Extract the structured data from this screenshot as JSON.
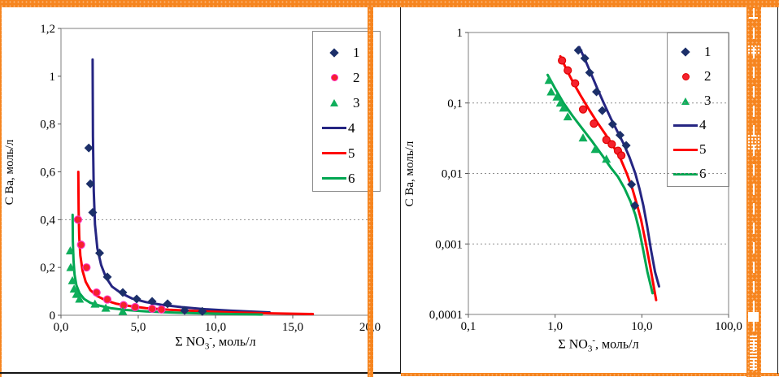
{
  "decor": {
    "accent_orange": "#f6851f",
    "frame_black": "#1d1d1d",
    "plot_border_gray": "#7f7f7f",
    "gridline_gray": "#8f8f8f"
  },
  "chart_data": [
    {
      "type": "scatter",
      "title": "",
      "x_scale": "linear",
      "y_scale": "linear",
      "xlim": [
        0,
        20
      ],
      "ylim": [
        0,
        1.2
      ],
      "grid": "single dashed line at y=0.4",
      "legend_position": "top-right-inside",
      "xlabel": {
        "prefix": "Σ NO",
        "sub": "3",
        "sup": "-",
        "suffix": ", моль/л"
      },
      "ylabel": "С Ba, моль/л",
      "x_ticks": [
        {
          "v": 0,
          "label": "0,0"
        },
        {
          "v": 5,
          "label": "5,0"
        },
        {
          "v": 10,
          "label": "10,0"
        },
        {
          "v": 15,
          "label": "15,0"
        },
        {
          "v": 20,
          "label": "20,0"
        }
      ],
      "y_ticks": [
        {
          "v": 1.2,
          "label": "1,2"
        },
        {
          "v": 1,
          "label": "1"
        },
        {
          "v": 0.8,
          "label": "0,8"
        },
        {
          "v": 0.6,
          "label": "0,6"
        },
        {
          "v": 0.4,
          "label": "0,4"
        },
        {
          "v": 0.2,
          "label": "0,2"
        },
        {
          "v": 0,
          "label": "0"
        }
      ],
      "gridlines_y": [
        0.4
      ],
      "series": [
        {
          "name": "4",
          "kind": "line",
          "color": "#252582",
          "points": [
            [
              2.05,
              1.07
            ],
            [
              2.07,
              0.75
            ],
            [
              2.12,
              0.52
            ],
            [
              2.2,
              0.38
            ],
            [
              2.35,
              0.28
            ],
            [
              2.6,
              0.21
            ],
            [
              2.9,
              0.16
            ],
            [
              3.3,
              0.12
            ],
            [
              3.9,
              0.092
            ],
            [
              4.6,
              0.07
            ],
            [
              5.5,
              0.055
            ],
            [
              6.5,
              0.044
            ],
            [
              7.8,
              0.034
            ],
            [
              9.2,
              0.026
            ],
            [
              11,
              0.019
            ],
            [
              13.5,
              0.012
            ]
          ]
        },
        {
          "name": "5",
          "kind": "line",
          "color": "#fe0000",
          "points": [
            [
              1.12,
              0.6
            ],
            [
              1.14,
              0.44
            ],
            [
              1.18,
              0.33
            ],
            [
              1.25,
              0.25
            ],
            [
              1.4,
              0.185
            ],
            [
              1.6,
              0.14
            ],
            [
              1.9,
              0.105
            ],
            [
              2.3,
              0.082
            ],
            [
              2.9,
              0.062
            ],
            [
              3.6,
              0.048
            ],
            [
              4.5,
              0.038
            ],
            [
              5.5,
              0.03
            ],
            [
              7,
              0.023
            ],
            [
              9,
              0.017
            ],
            [
              11,
              0.012
            ],
            [
              13.5,
              0.008
            ],
            [
              16.3,
              0.005
            ]
          ]
        },
        {
          "name": "6",
          "kind": "line",
          "color": "#00a651",
          "points": [
            [
              0.75,
              0.42
            ],
            [
              0.77,
              0.31
            ],
            [
              0.81,
              0.23
            ],
            [
              0.88,
              0.17
            ],
            [
              1.0,
              0.125
            ],
            [
              1.2,
              0.092
            ],
            [
              1.5,
              0.068
            ],
            [
              1.9,
              0.052
            ],
            [
              2.5,
              0.04
            ],
            [
              3.2,
              0.03
            ],
            [
              4.2,
              0.022
            ],
            [
              5.5,
              0.016
            ],
            [
              7,
              0.012
            ],
            [
              9,
              0.008
            ],
            [
              11,
              0.005
            ],
            [
              13,
              0.003
            ]
          ]
        },
        {
          "name": "1",
          "kind": "markers",
          "marker": "diamond",
          "color": "#1c2f69",
          "points": [
            [
              1.8,
              0.7
            ],
            [
              1.9,
              0.55
            ],
            [
              2.05,
              0.43
            ],
            [
              2.5,
              0.26
            ],
            [
              3.0,
              0.16
            ],
            [
              4.0,
              0.095
            ],
            [
              4.9,
              0.068
            ],
            [
              5.9,
              0.058
            ],
            [
              6.9,
              0.048
            ],
            [
              8.0,
              0.02
            ],
            [
              9.15,
              0.016
            ]
          ]
        },
        {
          "name": "2",
          "kind": "markers",
          "marker": "circle",
          "color": "#f5222d",
          "edge": "#ff2fbf",
          "points": [
            [
              1.1,
              0.4
            ],
            [
              1.3,
              0.295
            ],
            [
              1.65,
              0.2
            ],
            [
              2.3,
              0.095
            ],
            [
              3.0,
              0.066
            ],
            [
              4.05,
              0.042
            ],
            [
              4.8,
              0.034
            ],
            [
              5.9,
              0.027
            ],
            [
              6.5,
              0.024
            ]
          ]
        },
        {
          "name": "3",
          "kind": "markers",
          "marker": "triangle",
          "color": "#0fae5b",
          "points": [
            [
              0.6,
              0.27
            ],
            [
              0.63,
              0.2
            ],
            [
              0.74,
              0.145
            ],
            [
              0.85,
              0.11
            ],
            [
              1.0,
              0.088
            ],
            [
              1.2,
              0.068
            ],
            [
              2.2,
              0.047
            ],
            [
              2.9,
              0.03
            ],
            [
              4.0,
              0.016
            ]
          ]
        }
      ]
    },
    {
      "type": "scatter",
      "title": "",
      "x_scale": "log",
      "y_scale": "log",
      "xlim": [
        0.1,
        100
      ],
      "ylim": [
        0.0001,
        1
      ],
      "grid": "dashed lines at each y decade",
      "legend_position": "top-right-inside",
      "xlabel": {
        "prefix": "Σ NO",
        "sub": "3",
        "sup": "-",
        "suffix": ", моль/л"
      },
      "ylabel": "С Ba, моль/л",
      "x_ticks": [
        {
          "v": 0.1,
          "label": "0,1"
        },
        {
          "v": 1,
          "label": "1,0"
        },
        {
          "v": 10,
          "label": "10,0"
        },
        {
          "v": 100,
          "label": "100,0"
        }
      ],
      "y_ticks": [
        {
          "v": 1,
          "label": "1"
        },
        {
          "v": 0.1,
          "label": "0,1"
        },
        {
          "v": 0.01,
          "label": "0,01"
        },
        {
          "v": 0.001,
          "label": "0,001"
        },
        {
          "v": 0.0001,
          "label": "0,0001"
        }
      ],
      "gridlines_y": [
        0.1,
        0.01,
        0.001
      ],
      "series": [
        {
          "name": "4",
          "kind": "line",
          "color": "#252582",
          "points": [
            [
              1.9,
              0.62
            ],
            [
              2.2,
              0.42
            ],
            [
              2.6,
              0.26
            ],
            [
              3.1,
              0.155
            ],
            [
              3.7,
              0.095
            ],
            [
              4.4,
              0.06
            ],
            [
              5.2,
              0.04
            ],
            [
              6.2,
              0.026
            ],
            [
              7.2,
              0.017
            ],
            [
              8.4,
              0.01
            ],
            [
              9.4,
              0.006
            ],
            [
              10.4,
              0.0035
            ],
            [
              11.5,
              0.0018
            ],
            [
              12.8,
              0.0008
            ],
            [
              14.2,
              0.0004
            ],
            [
              15.8,
              0.00025
            ]
          ]
        },
        {
          "name": "5",
          "kind": "line",
          "color": "#fe0000",
          "points": [
            [
              1.15,
              0.46
            ],
            [
              1.35,
              0.3
            ],
            [
              1.6,
              0.2
            ],
            [
              1.95,
              0.13
            ],
            [
              2.4,
              0.085
            ],
            [
              3.0,
              0.055
            ],
            [
              3.8,
              0.036
            ],
            [
              4.7,
              0.024
            ],
            [
              5.7,
              0.016
            ],
            [
              6.7,
              0.01
            ],
            [
              7.8,
              0.006
            ],
            [
              8.8,
              0.0036
            ],
            [
              9.8,
              0.0022
            ],
            [
              11,
              0.0011
            ],
            [
              12.4,
              0.0005
            ],
            [
              14.6,
              0.00016
            ]
          ]
        },
        {
          "name": "6",
          "kind": "line",
          "color": "#00a651",
          "points": [
            [
              0.82,
              0.25
            ],
            [
              1.0,
              0.16
            ],
            [
              1.25,
              0.1
            ],
            [
              1.6,
              0.065
            ],
            [
              2.1,
              0.042
            ],
            [
              2.7,
              0.028
            ],
            [
              3.5,
              0.018
            ],
            [
              4.4,
              0.012
            ],
            [
              5.3,
              0.009
            ],
            [
              6.3,
              0.0062
            ],
            [
              7.4,
              0.004
            ],
            [
              8.4,
              0.0026
            ],
            [
              9.4,
              0.0015
            ],
            [
              10.4,
              0.0008
            ],
            [
              11.6,
              0.0004
            ],
            [
              13.3,
              0.0002
            ]
          ]
        },
        {
          "name": "1",
          "kind": "markers",
          "marker": "diamond",
          "color": "#1c2f69",
          "points": [
            [
              1.85,
              0.56
            ],
            [
              2.2,
              0.43
            ],
            [
              2.5,
              0.27
            ],
            [
              3.0,
              0.144
            ],
            [
              3.5,
              0.078
            ],
            [
              4.6,
              0.05
            ],
            [
              5.6,
              0.035
            ],
            [
              6.6,
              0.025
            ],
            [
              7.6,
              0.007
            ],
            [
              8.3,
              0.0035
            ]
          ]
        },
        {
          "name": "2",
          "kind": "markers",
          "marker": "circle",
          "color": "#f5222d",
          "edge": "#e00000",
          "points": [
            [
              1.2,
              0.4
            ],
            [
              1.4,
              0.29
            ],
            [
              1.7,
              0.19
            ],
            [
              2.1,
              0.081
            ],
            [
              2.8,
              0.051
            ],
            [
              3.9,
              0.03
            ],
            [
              4.5,
              0.026
            ],
            [
              5.3,
              0.021
            ],
            [
              5.8,
              0.018
            ]
          ]
        },
        {
          "name": "3",
          "kind": "markers",
          "marker": "triangle",
          "color": "#0fae5b",
          "points": [
            [
              0.85,
              0.21
            ],
            [
              0.9,
              0.144
            ],
            [
              1.05,
              0.122
            ],
            [
              1.15,
              0.1
            ],
            [
              1.25,
              0.085
            ],
            [
              1.4,
              0.064
            ],
            [
              2.1,
              0.032
            ],
            [
              2.9,
              0.022
            ],
            [
              3.9,
              0.016
            ]
          ]
        }
      ]
    }
  ]
}
